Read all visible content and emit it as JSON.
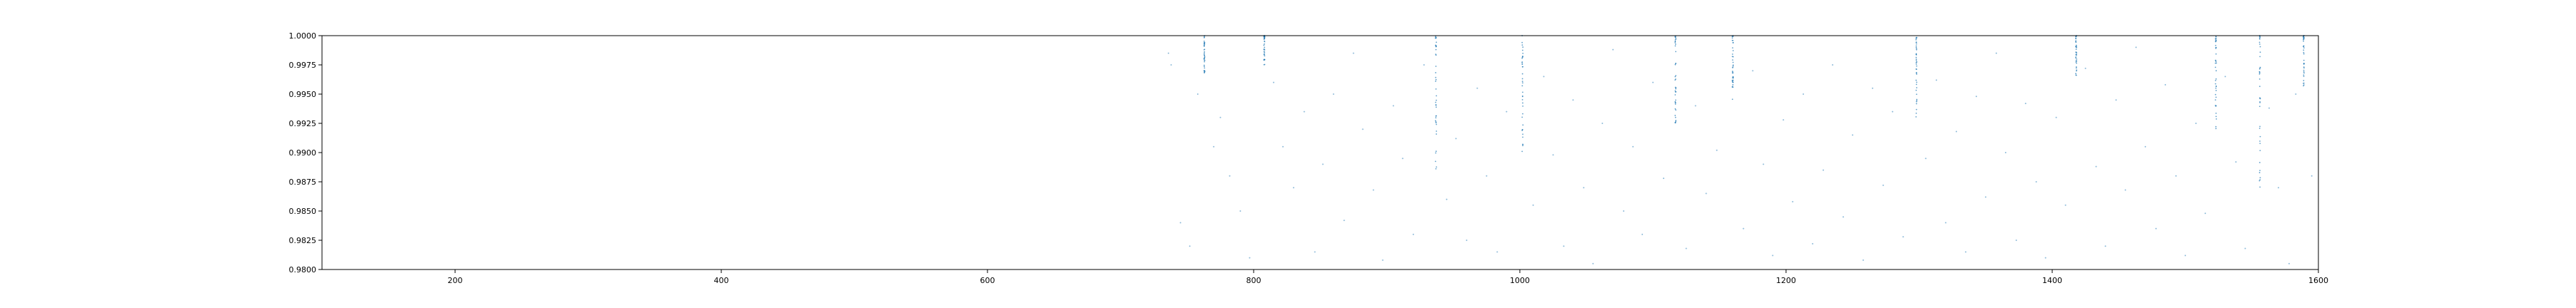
{
  "chart_data": {
    "type": "scatter",
    "title": "",
    "xlabel": "",
    "ylabel": "",
    "xlim": [
      100,
      1600
    ],
    "ylim": [
      0.98,
      1.0
    ],
    "grid": false,
    "legend": "none",
    "marker_color": "#1f77b4",
    "x_ticks": [
      200,
      400,
      600,
      800,
      1000,
      1200,
      1400,
      1600
    ],
    "x_tick_labels": [
      "200",
      "400",
      "600",
      "800",
      "1000",
      "1200",
      "1400",
      "1600"
    ],
    "y_ticks": [
      0.98,
      0.9825,
      0.985,
      0.9875,
      0.99,
      0.9925,
      0.995,
      0.9975,
      1.0
    ],
    "y_tick_labels": [
      "0.9800",
      "0.9825",
      "0.9850",
      "0.9875",
      "0.9900",
      "0.9925",
      "0.9950",
      "0.9975",
      "1.0000"
    ],
    "dense_columns": [
      {
        "x": 763,
        "y_min": 0.9965
      },
      {
        "x": 808,
        "y_min": 0.9975
      },
      {
        "x": 937,
        "y_min": 0.9885
      },
      {
        "x": 1002,
        "y_min": 0.99
      },
      {
        "x": 1117,
        "y_min": 0.992
      },
      {
        "x": 1160,
        "y_min": 0.9945
      },
      {
        "x": 1298,
        "y_min": 0.993
      },
      {
        "x": 1418,
        "y_min": 0.9965
      },
      {
        "x": 1523,
        "y_min": 0.992
      },
      {
        "x": 1556,
        "y_min": 0.986
      },
      {
        "x": 1589,
        "y_min": 0.9955
      }
    ],
    "points": [
      {
        "x": 736,
        "y": 0.9985
      },
      {
        "x": 738,
        "y": 0.9975
      },
      {
        "x": 745,
        "y": 0.984
      },
      {
        "x": 752,
        "y": 0.982
      },
      {
        "x": 758,
        "y": 0.995
      },
      {
        "x": 770,
        "y": 0.9905
      },
      {
        "x": 775,
        "y": 0.993
      },
      {
        "x": 782,
        "y": 0.988
      },
      {
        "x": 790,
        "y": 0.985
      },
      {
        "x": 797,
        "y": 0.981
      },
      {
        "x": 815,
        "y": 0.996
      },
      {
        "x": 822,
        "y": 0.9905
      },
      {
        "x": 830,
        "y": 0.987
      },
      {
        "x": 838,
        "y": 0.9935
      },
      {
        "x": 846,
        "y": 0.9815
      },
      {
        "x": 852,
        "y": 0.989
      },
      {
        "x": 860,
        "y": 0.995
      },
      {
        "x": 868,
        "y": 0.9842
      },
      {
        "x": 875,
        "y": 0.9985
      },
      {
        "x": 882,
        "y": 0.992
      },
      {
        "x": 890,
        "y": 0.9868
      },
      {
        "x": 897,
        "y": 0.9808
      },
      {
        "x": 905,
        "y": 0.994
      },
      {
        "x": 912,
        "y": 0.9895
      },
      {
        "x": 920,
        "y": 0.983
      },
      {
        "x": 928,
        "y": 0.9975
      },
      {
        "x": 945,
        "y": 0.986
      },
      {
        "x": 952,
        "y": 0.9912
      },
      {
        "x": 960,
        "y": 0.9825
      },
      {
        "x": 968,
        "y": 0.9955
      },
      {
        "x": 975,
        "y": 0.988
      },
      {
        "x": 983,
        "y": 0.9815
      },
      {
        "x": 990,
        "y": 0.9935
      },
      {
        "x": 1010,
        "y": 0.9855
      },
      {
        "x": 1018,
        "y": 0.9965
      },
      {
        "x": 1025,
        "y": 0.9898
      },
      {
        "x": 1033,
        "y": 0.982
      },
      {
        "x": 1040,
        "y": 0.9945
      },
      {
        "x": 1048,
        "y": 0.987
      },
      {
        "x": 1055,
        "y": 0.9805
      },
      {
        "x": 1062,
        "y": 0.9925
      },
      {
        "x": 1070,
        "y": 0.9988
      },
      {
        "x": 1078,
        "y": 0.985
      },
      {
        "x": 1085,
        "y": 0.9905
      },
      {
        "x": 1092,
        "y": 0.983
      },
      {
        "x": 1100,
        "y": 0.996
      },
      {
        "x": 1108,
        "y": 0.9878
      },
      {
        "x": 1125,
        "y": 0.9818
      },
      {
        "x": 1132,
        "y": 0.994
      },
      {
        "x": 1140,
        "y": 0.9865
      },
      {
        "x": 1148,
        "y": 0.9902
      },
      {
        "x": 1168,
        "y": 0.9835
      },
      {
        "x": 1175,
        "y": 0.997
      },
      {
        "x": 1183,
        "y": 0.989
      },
      {
        "x": 1190,
        "y": 0.9812
      },
      {
        "x": 1198,
        "y": 0.9928
      },
      {
        "x": 1205,
        "y": 0.9858
      },
      {
        "x": 1213,
        "y": 0.995
      },
      {
        "x": 1220,
        "y": 0.9822
      },
      {
        "x": 1228,
        "y": 0.9885
      },
      {
        "x": 1235,
        "y": 0.9975
      },
      {
        "x": 1243,
        "y": 0.9845
      },
      {
        "x": 1250,
        "y": 0.9915
      },
      {
        "x": 1258,
        "y": 0.9808
      },
      {
        "x": 1265,
        "y": 0.9955
      },
      {
        "x": 1273,
        "y": 0.9872
      },
      {
        "x": 1280,
        "y": 0.9935
      },
      {
        "x": 1288,
        "y": 0.9828
      },
      {
        "x": 1305,
        "y": 0.9895
      },
      {
        "x": 1313,
        "y": 0.9962
      },
      {
        "x": 1320,
        "y": 0.984
      },
      {
        "x": 1328,
        "y": 0.9918
      },
      {
        "x": 1335,
        "y": 0.9815
      },
      {
        "x": 1343,
        "y": 0.9948
      },
      {
        "x": 1350,
        "y": 0.9862
      },
      {
        "x": 1358,
        "y": 0.9985
      },
      {
        "x": 1365,
        "y": 0.99
      },
      {
        "x": 1373,
        "y": 0.9825
      },
      {
        "x": 1380,
        "y": 0.9942
      },
      {
        "x": 1388,
        "y": 0.9875
      },
      {
        "x": 1395,
        "y": 0.981
      },
      {
        "x": 1403,
        "y": 0.993
      },
      {
        "x": 1410,
        "y": 0.9855
      },
      {
        "x": 1425,
        "y": 0.9972
      },
      {
        "x": 1433,
        "y": 0.9888
      },
      {
        "x": 1440,
        "y": 0.982
      },
      {
        "x": 1448,
        "y": 0.9945
      },
      {
        "x": 1455,
        "y": 0.9868
      },
      {
        "x": 1463,
        "y": 0.999
      },
      {
        "x": 1470,
        "y": 0.9905
      },
      {
        "x": 1478,
        "y": 0.9835
      },
      {
        "x": 1485,
        "y": 0.9958
      },
      {
        "x": 1493,
        "y": 0.988
      },
      {
        "x": 1500,
        "y": 0.9812
      },
      {
        "x": 1508,
        "y": 0.9925
      },
      {
        "x": 1515,
        "y": 0.9848
      },
      {
        "x": 1530,
        "y": 0.9965
      },
      {
        "x": 1538,
        "y": 0.9892
      },
      {
        "x": 1545,
        "y": 0.9818
      },
      {
        "x": 1563,
        "y": 0.9938
      },
      {
        "x": 1570,
        "y": 0.987
      },
      {
        "x": 1578,
        "y": 0.9805
      },
      {
        "x": 1583,
        "y": 0.995
      },
      {
        "x": 1595,
        "y": 0.988
      }
    ]
  }
}
